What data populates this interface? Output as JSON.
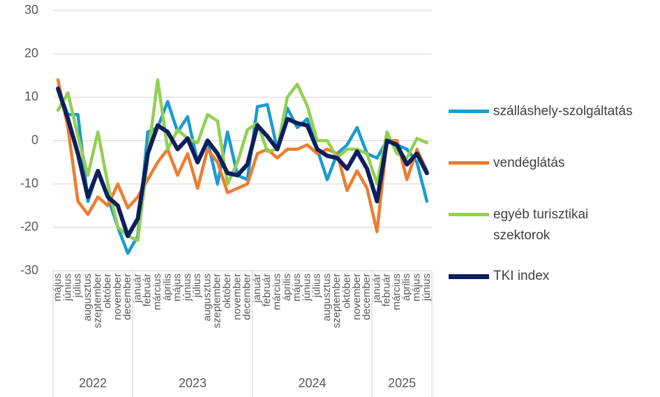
{
  "chart_data": {
    "type": "line",
    "category_groups": [
      {
        "label": "2022",
        "categories": [
          "május",
          "június",
          "július",
          "augusztus",
          "szeptember",
          "október",
          "november",
          "december"
        ]
      },
      {
        "label": "2023",
        "categories": [
          "január",
          "február",
          "március",
          "április",
          "május",
          "június",
          "július",
          "augusztus",
          "szeptember",
          "október",
          "november",
          "december"
        ]
      },
      {
        "label": "2024",
        "categories": [
          "január",
          "február",
          "március",
          "április",
          "május",
          "június",
          "július",
          "augusztus",
          "szeptember",
          "október",
          "november",
          "december"
        ]
      },
      {
        "label": "2025",
        "categories": [
          "január",
          "február",
          "március",
          "április",
          "május",
          "június"
        ]
      }
    ],
    "series": [
      {
        "name": "szálláshely-szolgáltatás",
        "color": "#1b9bd1",
        "values": [
          12,
          6,
          6,
          -14,
          -7,
          -13,
          -20,
          -26,
          -22,
          2,
          3,
          9,
          2,
          5.5,
          -5,
          0,
          -10,
          2,
          -8,
          -9,
          7.8,
          8.3,
          -2,
          7.5,
          3,
          5,
          -2,
          -9,
          -3,
          -1,
          3,
          -3,
          -4,
          0,
          -1,
          -2,
          -5,
          -14
        ]
      },
      {
        "name": "vendéglátás",
        "color": "#ed7d31",
        "values": [
          14,
          3,
          -14,
          -17,
          -13,
          -15,
          -10,
          -15.5,
          -13,
          -9,
          -5,
          -2,
          -8,
          -3,
          -11,
          -2,
          -5,
          -12,
          -11,
          -10,
          -3,
          -2,
          -4,
          -2,
          -2,
          -1,
          -3,
          -2,
          -3,
          -11.5,
          -7,
          -11,
          -21,
          0,
          0,
          -9,
          -2,
          -7
        ]
      },
      {
        "name": "egyéb turisztikai szektorok",
        "color": "#92d050",
        "values": [
          7,
          11,
          1,
          -8,
          2,
          -10,
          -20,
          -22,
          -23,
          -4,
          14,
          -2,
          2.5,
          0.5,
          -0.5,
          6,
          4.5,
          -10,
          -5,
          2.5,
          4,
          -2.5,
          -2,
          10,
          13,
          8,
          0,
          0,
          -4,
          -2,
          -2,
          -3,
          -10,
          2,
          -3,
          -4,
          0.5,
          -0.5
        ]
      },
      {
        "name": "TKI index",
        "color": "#0d1f5c",
        "values": [
          12,
          5,
          -3,
          -13,
          -7,
          -13,
          -15,
          -22,
          -18,
          -3,
          3.5,
          2,
          -2,
          0.5,
          -5,
          0,
          -3,
          -7.5,
          -8,
          -5.5,
          3.5,
          1,
          -2,
          5,
          4,
          3.5,
          -2,
          -3.5,
          -4,
          -6.5,
          -2.5,
          -6.5,
          -14,
          0,
          -1,
          -5.5,
          -3,
          -7.5
        ]
      }
    ],
    "ylim": [
      -30,
      30
    ],
    "yticks": [
      -30,
      -20,
      -10,
      0,
      10,
      20,
      30
    ],
    "grid": true,
    "legend": "right"
  }
}
